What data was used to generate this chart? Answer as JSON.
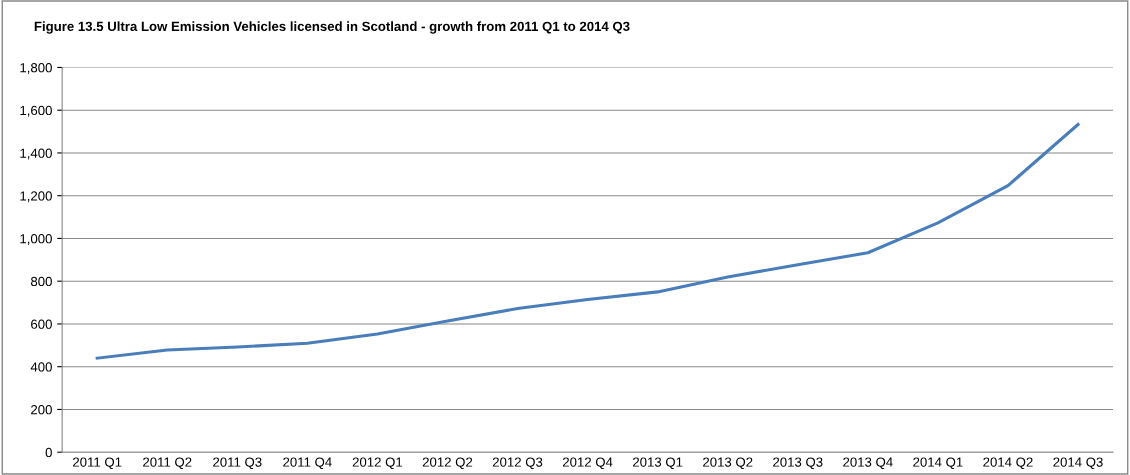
{
  "chart_data": {
    "type": "line",
    "title": "Figure 13.5 Ultra Low Emission Vehicles licensed in Scotland - growth from 2011 Q1 to 2014 Q3",
    "categories": [
      "2011 Q1",
      "2011 Q2",
      "2011 Q3",
      "2011 Q4",
      "2012 Q1",
      "2012 Q2",
      "2012 Q3",
      "2012 Q4",
      "2013 Q1",
      "2013 Q2",
      "2013 Q3",
      "2013 Q4",
      "2014 Q1",
      "2014 Q2",
      "2014 Q3"
    ],
    "series": [
      {
        "color": "#4a7ebb",
        "values": [
          440,
          478,
          492,
          510,
          553,
          614,
          672,
          714,
          750,
          820,
          877,
          933,
          1073,
          1247,
          1533
        ]
      }
    ],
    "ylim": [
      0,
      1800
    ],
    "yticks": [
      {
        "value": 0,
        "label": "0"
      },
      {
        "value": 200,
        "label": "200"
      },
      {
        "value": 400,
        "label": "400"
      },
      {
        "value": 600,
        "label": "600"
      },
      {
        "value": 800,
        "label": "800"
      },
      {
        "value": 1000,
        "label": "1,000"
      },
      {
        "value": 1200,
        "label": "1,200"
      },
      {
        "value": 1400,
        "label": "1,400"
      },
      {
        "value": 1600,
        "label": "1,600"
      },
      {
        "value": 1800,
        "label": "1,800"
      }
    ],
    "grid": "y",
    "legend": false,
    "marker": "none",
    "line_style": "solid"
  }
}
